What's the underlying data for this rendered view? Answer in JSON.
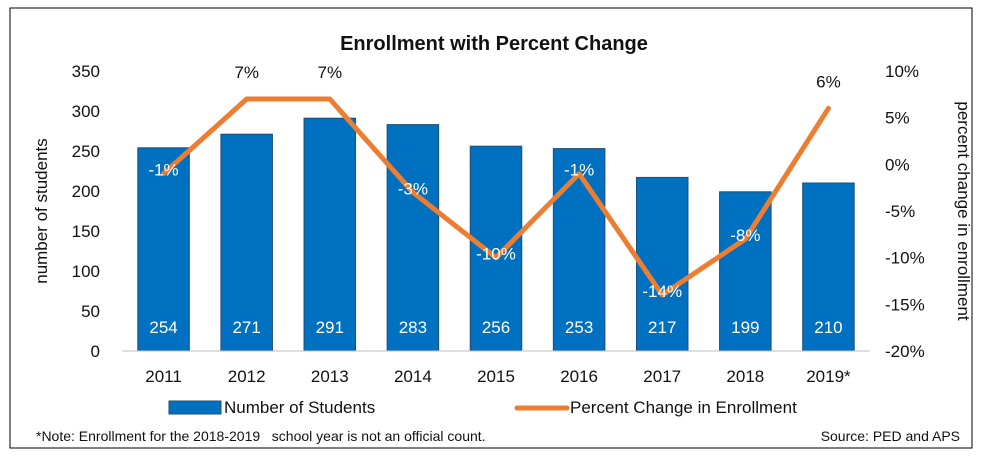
{
  "chart_data": {
    "type": "bar+line",
    "title": "Enrollment with Percent Change",
    "categories": [
      "2011",
      "2012",
      "2013",
      "2014",
      "2015",
      "2016",
      "2017",
      "2018",
      "2019*"
    ],
    "series": [
      {
        "name": "Number of Students",
        "type": "bar",
        "axis": "left",
        "values": [
          254,
          271,
          291,
          283,
          256,
          253,
          217,
          199,
          210
        ],
        "data_labels": [
          "254",
          "271",
          "291",
          "283",
          "256",
          "253",
          "217",
          "199",
          "210"
        ],
        "color": "#0070c0"
      },
      {
        "name": "Percent Change in Enrollment",
        "type": "line",
        "axis": "right",
        "values": [
          -1,
          7,
          7,
          -3,
          -10,
          -1,
          -14,
          -8,
          6
        ],
        "data_labels": [
          "-1%",
          "7%",
          "7%",
          "-3%",
          "-10%",
          "-1%",
          "-14%",
          "-8%",
          "6%"
        ],
        "color": "#ed7d31"
      }
    ],
    "ylabel": "number of students",
    "y2label": "percent change in enrollment",
    "ylim": [
      0,
      350
    ],
    "yticks": [
      "0",
      "50",
      "100",
      "150",
      "200",
      "250",
      "300",
      "350"
    ],
    "y2lim": [
      -20,
      10
    ],
    "y2ticks": [
      "-20%",
      "-15%",
      "-10%",
      "-5%",
      "0%",
      "5%",
      "10%"
    ],
    "legend_position": "bottom",
    "grid": false
  },
  "footer": {
    "note": "*Note: Enrollment for the 2018-2019   school year is not an official count.",
    "source": "Source: PED and APS"
  }
}
